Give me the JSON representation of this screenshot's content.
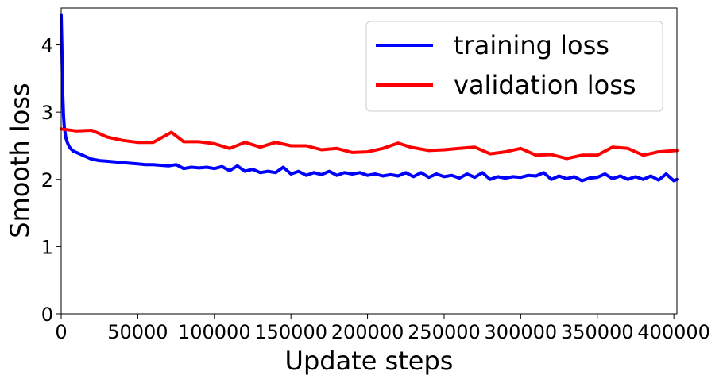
{
  "chart_data": {
    "type": "line",
    "title": "",
    "xlabel": "Update steps",
    "ylabel": "Smooth loss",
    "xlim": [
      0,
      402000
    ],
    "ylim": [
      0,
      4.55
    ],
    "x_ticks": [
      0,
      50000,
      100000,
      150000,
      200000,
      250000,
      300000,
      350000,
      400000
    ],
    "x_tick_labels": [
      "0",
      "50000",
      "100000",
      "150000",
      "200000",
      "250000",
      "300000",
      "350000",
      "400000"
    ],
    "y_ticks": [
      0,
      1,
      2,
      3,
      4
    ],
    "y_tick_labels": [
      "0",
      "1",
      "2",
      "3",
      "4"
    ],
    "grid": false,
    "legend_position": "top-right",
    "series": [
      {
        "name": "training loss",
        "color": "#0000ff",
        "x": [
          0,
          500,
          1000,
          1500,
          2000,
          3000,
          4000,
          5000,
          6000,
          8000,
          10000,
          12000,
          15000,
          18000,
          20000,
          25000,
          30000,
          35000,
          40000,
          45000,
          50000,
          55000,
          60000,
          65000,
          70000,
          75000,
          80000,
          85000,
          90000,
          95000,
          100000,
          105000,
          110000,
          115000,
          120000,
          125000,
          130000,
          135000,
          140000,
          145000,
          150000,
          155000,
          160000,
          165000,
          170000,
          175000,
          180000,
          185000,
          190000,
          195000,
          200000,
          205000,
          210000,
          215000,
          220000,
          225000,
          230000,
          235000,
          240000,
          245000,
          250000,
          255000,
          260000,
          265000,
          270000,
          275000,
          280000,
          285000,
          290000,
          295000,
          300000,
          305000,
          310000,
          315000,
          320000,
          325000,
          330000,
          335000,
          340000,
          345000,
          350000,
          355000,
          360000,
          365000,
          370000,
          375000,
          380000,
          385000,
          390000,
          395000,
          400000,
          402000
        ],
        "y": [
          4.45,
          3.9,
          3.3,
          2.95,
          2.78,
          2.62,
          2.55,
          2.5,
          2.46,
          2.42,
          2.4,
          2.38,
          2.35,
          2.32,
          2.3,
          2.28,
          2.27,
          2.26,
          2.25,
          2.24,
          2.23,
          2.22,
          2.22,
          2.21,
          2.2,
          2.22,
          2.16,
          2.18,
          2.17,
          2.18,
          2.16,
          2.19,
          2.13,
          2.2,
          2.12,
          2.15,
          2.1,
          2.12,
          2.1,
          2.18,
          2.08,
          2.12,
          2.06,
          2.1,
          2.07,
          2.12,
          2.06,
          2.1,
          2.08,
          2.1,
          2.06,
          2.08,
          2.05,
          2.07,
          2.05,
          2.1,
          2.04,
          2.1,
          2.03,
          2.08,
          2.04,
          2.06,
          2.02,
          2.08,
          2.03,
          2.1,
          2.0,
          2.04,
          2.02,
          2.04,
          2.03,
          2.06,
          2.05,
          2.1,
          2.0,
          2.05,
          2.01,
          2.04,
          1.98,
          2.02,
          2.03,
          2.08,
          2.01,
          2.05,
          2.0,
          2.04,
          2.0,
          2.05,
          1.99,
          2.08,
          1.98,
          2.0
        ]
      },
      {
        "name": "validation loss",
        "color": "#ff0000",
        "x": [
          0,
          10000,
          20000,
          30000,
          40000,
          50000,
          60000,
          72000,
          80000,
          90000,
          100000,
          110000,
          120000,
          130000,
          140000,
          150000,
          160000,
          170000,
          180000,
          190000,
          200000,
          210000,
          220000,
          228000,
          240000,
          250000,
          260000,
          270000,
          280000,
          290000,
          300000,
          310000,
          320000,
          330000,
          340000,
          350000,
          360000,
          370000,
          380000,
          390000,
          402000
        ],
        "y": [
          2.75,
          2.72,
          2.73,
          2.63,
          2.58,
          2.55,
          2.55,
          2.7,
          2.56,
          2.56,
          2.53,
          2.46,
          2.55,
          2.48,
          2.55,
          2.5,
          2.5,
          2.44,
          2.46,
          2.4,
          2.41,
          2.46,
          2.54,
          2.48,
          2.43,
          2.44,
          2.46,
          2.48,
          2.38,
          2.41,
          2.46,
          2.36,
          2.37,
          2.31,
          2.36,
          2.36,
          2.48,
          2.46,
          2.36,
          2.41,
          2.43
        ]
      }
    ]
  }
}
